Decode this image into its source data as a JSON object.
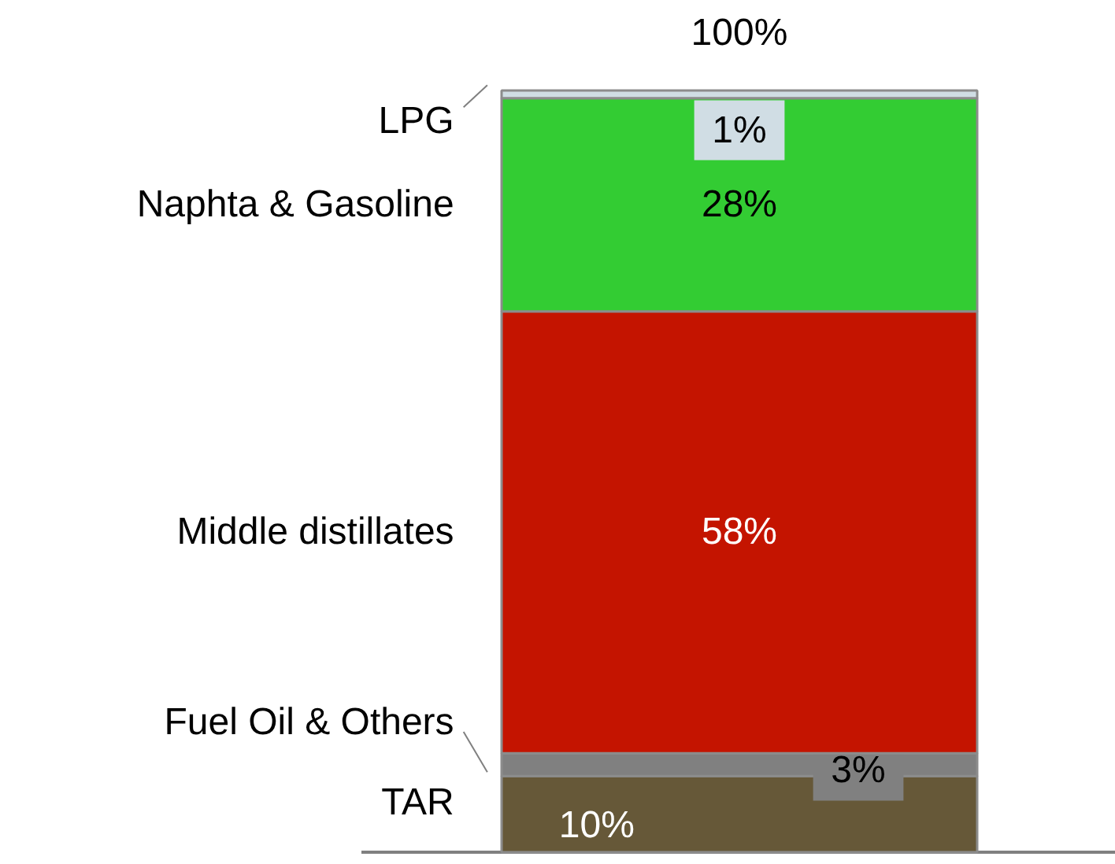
{
  "chart_data": {
    "type": "bar",
    "stacked": true,
    "categories": [
      null
    ],
    "series": [
      {
        "name": "TAR",
        "color": "#665838",
        "values": [
          10
        ],
        "value_labels": [
          "10%"
        ]
      },
      {
        "name": "Fuel Oil & Others",
        "color": "#808080",
        "values": [
          3
        ],
        "value_labels": [
          "3%"
        ]
      },
      {
        "name": "Middle distillates",
        "color": "#c41400",
        "values": [
          58
        ],
        "value_labels": [
          "58%"
        ]
      },
      {
        "name": "Naphta & Gasoline",
        "color": "#33cc33",
        "values": [
          28
        ],
        "value_labels": [
          "28%"
        ]
      },
      {
        "name": "LPG",
        "color": "#d0dde4",
        "values": [
          1
        ],
        "value_labels": [
          "1%"
        ]
      }
    ],
    "totals": [
      "100%"
    ],
    "legend": "left"
  }
}
